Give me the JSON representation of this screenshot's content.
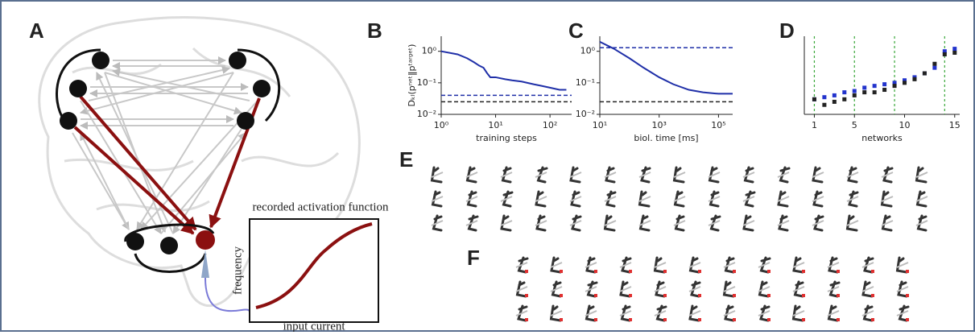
{
  "panels": [
    "A",
    "B",
    "C",
    "D",
    "E",
    "F"
  ],
  "inset": {
    "title": "recorded activation function",
    "ylabel": "frequency",
    "xlabel": "input current"
  },
  "chart_data": [
    {
      "type": "line",
      "xlabel": "training steps",
      "ylabel": "Dₖₗ(pⁿᵉᵗ‖pᵗᵃʳᵍᵉᵗ)",
      "xscale": "log",
      "yscale": "log",
      "xlim": [
        1,
        250
      ],
      "ylim": [
        0.01,
        3
      ],
      "xticks": [
        {
          "value": 1,
          "label": "10⁰"
        },
        {
          "value": 10,
          "label": "10¹"
        },
        {
          "value": 100,
          "label": "10²"
        }
      ],
      "yticks": [
        {
          "value": 1,
          "label": "10⁰"
        },
        {
          "value": 0.1,
          "label": "10⁻¹"
        },
        {
          "value": 0.01,
          "label": "10⁻²"
        }
      ],
      "series": [
        {
          "color": "#1f2fa8",
          "x": [
            1,
            2,
            3,
            4,
            5,
            6,
            7,
            8,
            10,
            15,
            20,
            30,
            50,
            70,
            100,
            150,
            200
          ],
          "values": [
            1,
            0.8,
            0.6,
            0.45,
            0.35,
            0.3,
            0.2,
            0.15,
            0.15,
            0.13,
            0.12,
            0.11,
            0.09,
            0.08,
            0.07,
            0.06,
            0.06
          ]
        }
      ],
      "hlines": [
        {
          "value": 0.04,
          "color": "#1f2fa8"
        },
        {
          "value": 0.025,
          "color": "#222222"
        }
      ]
    },
    {
      "type": "line",
      "xlabel": "biol. time [ms]",
      "xscale": "log",
      "yscale": "log",
      "xlim": [
        10,
        300000
      ],
      "ylim": [
        0.01,
        3
      ],
      "xticks": [
        {
          "value": 10,
          "label": "10¹"
        },
        {
          "value": 1000,
          "label": "10³"
        },
        {
          "value": 100000,
          "label": "10⁵"
        }
      ],
      "yticks": [
        {
          "value": 1,
          "label": "10⁰"
        },
        {
          "value": 0.1,
          "label": "10⁻¹"
        },
        {
          "value": 0.01,
          "label": "10⁻²"
        }
      ],
      "series": [
        {
          "color": "#1f2fa8",
          "x": [
            10,
            30,
            100,
            300,
            1000,
            3000,
            10000,
            30000,
            100000,
            300000
          ],
          "values": [
            2,
            1.2,
            0.6,
            0.3,
            0.15,
            0.09,
            0.06,
            0.05,
            0.045,
            0.045
          ]
        }
      ],
      "hlines": [
        {
          "value": 1.3,
          "color": "#1f2fa8"
        },
        {
          "value": 0.025,
          "color": "#222222"
        }
      ]
    },
    {
      "type": "scatter",
      "xlabel": "networks",
      "xscale": "linear",
      "yscale": "log",
      "xlim": [
        0,
        15.5
      ],
      "ylim": [
        0.01,
        3
      ],
      "xticks": [
        1,
        5,
        10,
        15
      ],
      "series": [
        {
          "color": "#2233cc",
          "x": [
            1,
            2,
            3,
            4,
            5,
            6,
            7,
            8,
            9,
            10,
            11,
            12,
            13,
            14,
            15
          ],
          "values": [
            0.03,
            0.035,
            0.04,
            0.05,
            0.055,
            0.07,
            0.08,
            0.09,
            0.1,
            0.12,
            0.15,
            0.2,
            0.3,
            1.0,
            1.2
          ]
        },
        {
          "color": "#222222",
          "x": [
            1,
            2,
            3,
            4,
            5,
            6,
            7,
            8,
            9,
            10,
            11,
            12,
            13,
            14,
            15
          ],
          "values": [
            0.03,
            0.02,
            0.025,
            0.03,
            0.04,
            0.05,
            0.05,
            0.06,
            0.08,
            0.1,
            0.13,
            0.2,
            0.4,
            0.8,
            0.9
          ]
        }
      ],
      "vlines": [
        {
          "value": 1,
          "color": "#3aa83a"
        },
        {
          "value": 5,
          "color": "#3aa83a"
        },
        {
          "value": 9,
          "color": "#3aa83a"
        },
        {
          "value": 14,
          "color": "#3aa83a"
        }
      ]
    }
  ]
}
